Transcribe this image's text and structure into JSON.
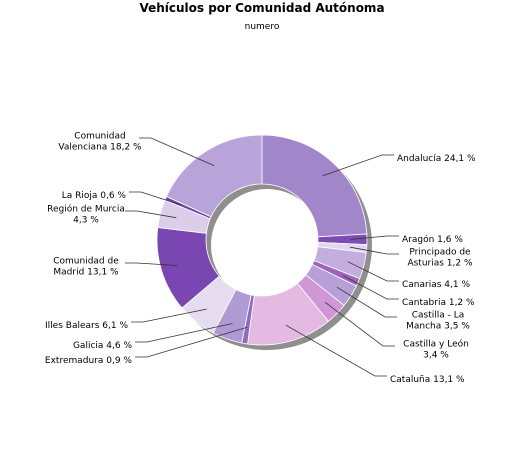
{
  "chart_data": {
    "type": "pie",
    "variant": "donut",
    "title": "Vehículos por Comunidad Autónoma",
    "subtitle": "numero",
    "legend": "labels-around",
    "slices": [
      {
        "name": "Andalucía",
        "value": 24.1,
        "label_lines": [
          "Andalucía 24,1 %"
        ],
        "color": "#a186c9"
      },
      {
        "name": "Aragón",
        "value": 1.6,
        "label_lines": [
          "Aragón 1,6 %"
        ],
        "color": "#7d4cb4"
      },
      {
        "name": "Principado de Asturias",
        "value": 1.2,
        "label_lines": [
          "Principado de",
          "Asturias 1,2 %"
        ],
        "color": "#e3d6ef"
      },
      {
        "name": "Canarias",
        "value": 4.1,
        "label_lines": [
          "Canarias 4,1 %"
        ],
        "color": "#c4aee0"
      },
      {
        "name": "Cantabria",
        "value": 1.2,
        "label_lines": [
          "Cantabria 1,2 %"
        ],
        "color": "#9c63b8"
      },
      {
        "name": "Castilla - La Mancha",
        "value": 3.5,
        "label_lines": [
          "Castilla - La",
          "Mancha 3,5 %"
        ],
        "color": "#b7a0d8"
      },
      {
        "name": "Castilla y León",
        "value": 3.4,
        "label_lines": [
          "Castilla y León",
          "3,4 %"
        ],
        "color": "#cf97d6"
      },
      {
        "name": "Cataluña",
        "value": 13.1,
        "label_lines": [
          "Cataluña 13,1 %"
        ],
        "color": "#e4b9e2"
      },
      {
        "name": "Extremadura",
        "value": 0.9,
        "label_lines": [
          "Extremadura 0,9 %"
        ],
        "color": "#8d6cc0"
      },
      {
        "name": "Galicia",
        "value": 4.6,
        "label_lines": [
          "Galicia 4,6 %"
        ],
        "color": "#b09ad3"
      },
      {
        "name": "Illes Balears",
        "value": 6.1,
        "label_lines": [
          "Illes Balears 6,1 %"
        ],
        "color": "#e6dcf0"
      },
      {
        "name": "Comunidad de Madrid",
        "value": 13.1,
        "label_lines": [
          "Comunidad de",
          "Madrid 13,1 %"
        ],
        "color": "#7a46b1"
      },
      {
        "name": "Región de Murcia",
        "value": 4.3,
        "label_lines": [
          "Región de Murcia",
          "4,3 %"
        ],
        "color": "#dccdeb"
      },
      {
        "name": "La Rioja",
        "value": 0.6,
        "label_lines": [
          "La Rioja 0,6 %"
        ],
        "color": "#6f3fa6"
      },
      {
        "name": "Comunidad Valenciana",
        "value": 18.2,
        "label_lines": [
          "Comunidad",
          "Valenciana 18,2 %"
        ],
        "color": "#b9a4d9"
      }
    ]
  }
}
